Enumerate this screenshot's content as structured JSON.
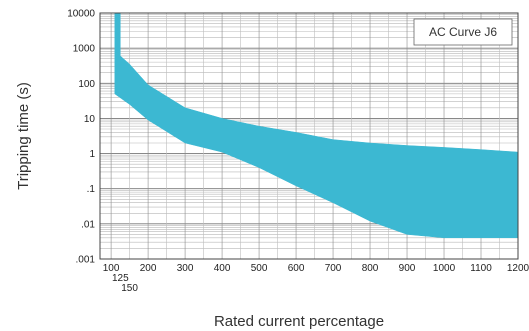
{
  "chart_data": {
    "type": "area",
    "title": "",
    "xlabel": "Rated current percentage",
    "ylabel": "Tripping time (s)",
    "y_scale": "log",
    "xlim": [
      70,
      1200
    ],
    "ylim": [
      0.001,
      10000
    ],
    "grid": true,
    "legend_position": "top-right",
    "x_ticks": [
      {
        "value": 100,
        "label": "100"
      },
      {
        "value": 125,
        "label": "125"
      },
      {
        "value": 150,
        "label": "150"
      },
      {
        "value": 200,
        "label": "200"
      },
      {
        "value": 300,
        "label": "300"
      },
      {
        "value": 400,
        "label": "400"
      },
      {
        "value": 500,
        "label": "500"
      },
      {
        "value": 600,
        "label": "600"
      },
      {
        "value": 700,
        "label": "700"
      },
      {
        "value": 800,
        "label": "800"
      },
      {
        "value": 900,
        "label": "900"
      },
      {
        "value": 1000,
        "label": "1000"
      },
      {
        "value": 1100,
        "label": "1100"
      },
      {
        "value": 1200,
        "label": "1200"
      }
    ],
    "y_ticks": [
      {
        "value": 10000,
        "label": "10000"
      },
      {
        "value": 1000,
        "label": "1000"
      },
      {
        "value": 100,
        "label": "100"
      },
      {
        "value": 10,
        "label": "10"
      },
      {
        "value": 1,
        "label": "1"
      },
      {
        "value": 0.1,
        "label": ".1"
      },
      {
        "value": 0.01,
        "label": ".01"
      },
      {
        "value": 0.001,
        "label": ".001"
      }
    ],
    "series": [
      {
        "name": "AC Curve J6",
        "color": "#3cb8d2",
        "upper": [
          {
            "x": 110,
            "y": 10000
          },
          {
            "x": 125,
            "y": 10000
          },
          {
            "x": 125,
            "y": 600
          },
          {
            "x": 150,
            "y": 350
          },
          {
            "x": 200,
            "y": 90
          },
          {
            "x": 300,
            "y": 20
          },
          {
            "x": 400,
            "y": 10
          },
          {
            "x": 500,
            "y": 6
          },
          {
            "x": 600,
            "y": 4
          },
          {
            "x": 700,
            "y": 2.5
          },
          {
            "x": 800,
            "y": 2
          },
          {
            "x": 900,
            "y": 1.7
          },
          {
            "x": 1000,
            "y": 1.5
          },
          {
            "x": 1100,
            "y": 1.3
          },
          {
            "x": 1200,
            "y": 1.1
          }
        ],
        "lower": [
          {
            "x": 110,
            "y": 10000
          },
          {
            "x": 110,
            "y": 50
          },
          {
            "x": 150,
            "y": 25
          },
          {
            "x": 200,
            "y": 9
          },
          {
            "x": 300,
            "y": 2
          },
          {
            "x": 400,
            "y": 1.1
          },
          {
            "x": 500,
            "y": 0.4
          },
          {
            "x": 600,
            "y": 0.12
          },
          {
            "x": 700,
            "y": 0.04
          },
          {
            "x": 800,
            "y": 0.012
          },
          {
            "x": 900,
            "y": 0.005
          },
          {
            "x": 1000,
            "y": 0.004
          },
          {
            "x": 1100,
            "y": 0.004
          },
          {
            "x": 1200,
            "y": 0.004
          }
        ]
      }
    ]
  }
}
